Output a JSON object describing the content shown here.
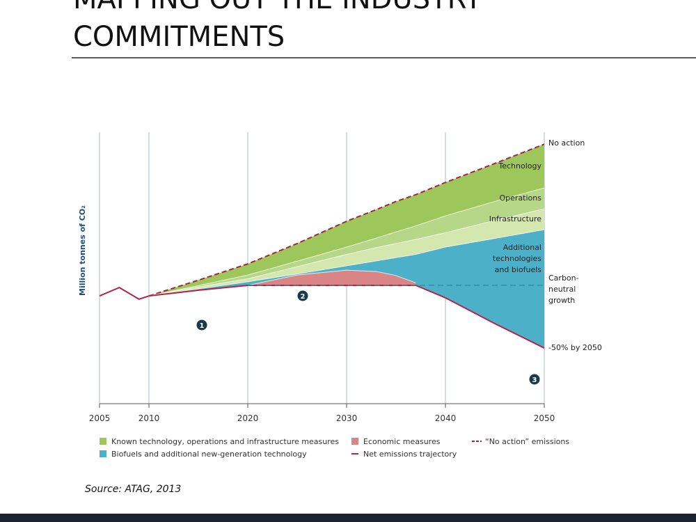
{
  "slide": {
    "title_top": "MAPPING OUT THE INDUSTRY",
    "title": "COMMITMENTS",
    "source": "Source: ATAG, 2013"
  },
  "chart_data": {
    "type": "area",
    "y_label": "Million tonnes of CO₂",
    "x": [
      2005,
      2007,
      2009,
      2010,
      2015,
      2020,
      2025,
      2030,
      2033,
      2035,
      2037,
      2040,
      2045,
      2050
    ],
    "xlim": [
      2005,
      2050
    ],
    "xticks": [
      2005,
      2010,
      2020,
      2030,
      2040,
      2050
    ],
    "ylim": [
      0,
      100
    ],
    "grid": true,
    "series": [
      {
        "name": "Technology",
        "color": "#9dc75a",
        "line_color": "#a3263f",
        "line_dash": true,
        "values": [
          null,
          null,
          null,
          39.7,
          45.5,
          51.5,
          59,
          67.2,
          71.5,
          74.5,
          77,
          81.5,
          88.5,
          95.6
        ]
      },
      {
        "name": "Operations",
        "color": "#b7d788",
        "values": [
          null,
          null,
          null,
          39.7,
          43.5,
          47.4,
          52.5,
          57.7,
          61,
          63.3,
          65.5,
          69.2,
          74.5,
          79.5
        ]
      },
      {
        "name": "Infrastructure",
        "color": "#d3e7ae",
        "values": [
          null,
          null,
          null,
          39.7,
          43,
          46,
          50.5,
          55,
          57.5,
          59,
          60.5,
          63,
          67.5,
          71.8
        ]
      },
      {
        "name": "Additional technologies and biofuels",
        "color": "#4bb0c8",
        "values": [
          null,
          null,
          null,
          39.7,
          42.3,
          44.9,
          47.8,
          50.8,
          52.6,
          53.8,
          55,
          57.7,
          60.9,
          64.1
        ]
      },
      {
        "name": "Economic measures",
        "color": "#d98585",
        "values": [
          null,
          null,
          null,
          null,
          null,
          43.6,
          47.4,
          49.2,
          48.7,
          47.2,
          44.5,
          null,
          null,
          null
        ]
      },
      {
        "name": "Net emissions trajectory",
        "color": "#b3234a",
        "line_only": true,
        "values": [
          39.7,
          42.8,
          38.5,
          39.7,
          41.8,
          43.6,
          43.6,
          43.6,
          43.6,
          43.6,
          43.6,
          39,
          29.5,
          20.5
        ]
      }
    ],
    "reference_line": {
      "label": "Carbon-neutral growth",
      "value": 43.6,
      "from": 2020,
      "color": "#2a8ea6"
    },
    "annotations": {
      "no_action": "No action",
      "half": "-50% by 2050",
      "markers": [
        "1",
        "2",
        "3"
      ]
    },
    "legend": [
      {
        "label": "Known technology, operations and infrastructure measures",
        "color": "#9dc75a",
        "key": "swatch"
      },
      {
        "label": "Biofuels and additional new-generation technology",
        "color": "#4bb0c8",
        "key": "swatch"
      },
      {
        "label": "Economic measures",
        "color": "#d98585",
        "key": "swatch"
      },
      {
        "label": "Net emissions trajectory",
        "color": "#b3234a",
        "key": "line"
      },
      {
        "label": "“No action” emissions",
        "color": "#a3263f",
        "key": "dash"
      }
    ]
  }
}
